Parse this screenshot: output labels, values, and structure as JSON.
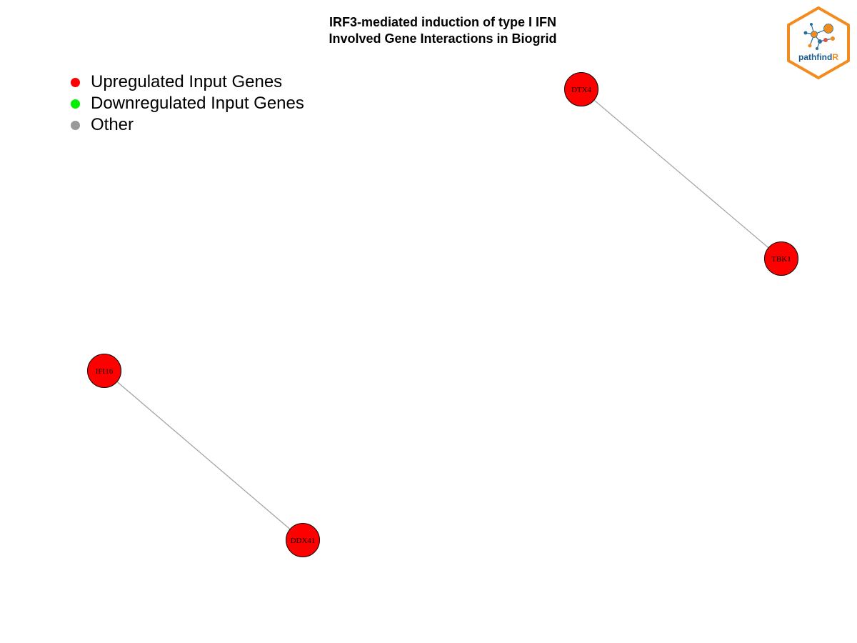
{
  "title": {
    "line1": "IRF3-mediated induction of type I IFN",
    "line2": "Involved Gene Interactions in Biogrid"
  },
  "legend": [
    {
      "label": "Upregulated Input Genes",
      "color": "#ff0000"
    },
    {
      "label": "Downregulated Input Genes",
      "color": "#00ee00"
    },
    {
      "label": "Other",
      "color": "#999999"
    }
  ],
  "network": {
    "node_color": "#ff0000",
    "edge_color": "#a0a0a0",
    "nodes": [
      {
        "id": "DTX4",
        "label": "DTX4",
        "status": "upregulated"
      },
      {
        "id": "TBK1",
        "label": "TBK1",
        "status": "upregulated"
      },
      {
        "id": "IFI16",
        "label": "IFI16",
        "status": "upregulated"
      },
      {
        "id": "DDX41",
        "label": "DDX41",
        "status": "upregulated"
      }
    ],
    "edges": [
      {
        "source": "DTX4",
        "target": "TBK1"
      },
      {
        "source": "IFI16",
        "target": "DDX41"
      }
    ]
  },
  "logo": {
    "text_main": "pathfind",
    "text_accent": "R",
    "main_color": "#1a5a8a",
    "accent_color": "#f28c1e",
    "icon": "network-hexagon-icon"
  }
}
